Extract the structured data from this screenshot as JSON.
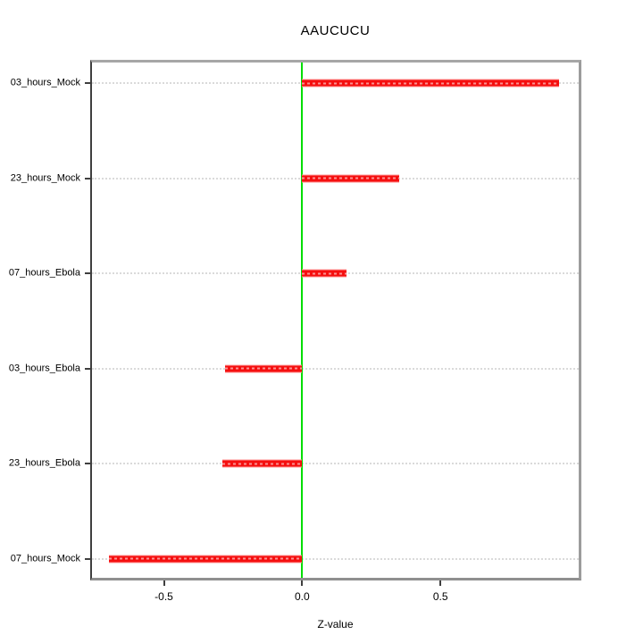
{
  "page": {
    "background": "#ffffff"
  },
  "chart_data": {
    "type": "bar",
    "orientation": "horizontal",
    "title": "AAUCUCU",
    "xlabel": "Z-value",
    "categories": [
      "03_hours_Mock",
      "23_hours_Mock",
      "07_hours_Ebola",
      "03_hours_Ebola",
      "23_hours_Ebola",
      "07_hours_Mock"
    ],
    "values": [
      0.93,
      0.35,
      0.16,
      -0.28,
      -0.29,
      -0.7
    ],
    "xlim": [
      -0.76,
      1.0
    ],
    "xticks": [
      {
        "value": -0.5,
        "label": "-0.5"
      },
      {
        "value": 0.0,
        "label": "0.0"
      },
      {
        "value": 0.5,
        "label": "0.5"
      }
    ],
    "zero_line_value": 0.0,
    "grid": {
      "style": "dotted",
      "per_category": true,
      "legend": "none"
    },
    "colors": {
      "bar": "#f50f0f",
      "bar_edge": "#ff9a9a",
      "zero_line": "#00dd00",
      "grid": "#dadada",
      "frame": "#9c9c9c",
      "axis": "#3f3f3f",
      "text": "#000000"
    }
  }
}
